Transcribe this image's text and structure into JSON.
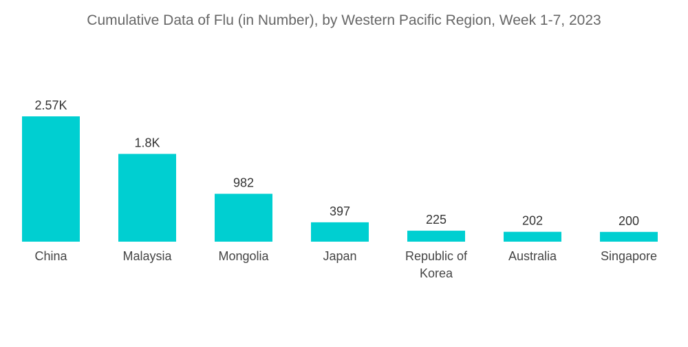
{
  "chart_data": {
    "type": "bar",
    "title": "Cumulative Data of Flu (in Number), by Western Pacific Region, Week 1-7, 2023",
    "categories": [
      "China",
      "Malaysia",
      "Mongolia",
      "Japan",
      "Republic of Korea",
      "Australia",
      "Singapore"
    ],
    "category_lines": [
      [
        "China"
      ],
      [
        "Malaysia"
      ],
      [
        "Mongolia"
      ],
      [
        "Japan"
      ],
      [
        "Republic of",
        "Korea"
      ],
      [
        "Australia"
      ],
      [
        "Singapore"
      ]
    ],
    "values": [
      2570,
      1800,
      982,
      397,
      225,
      202,
      200
    ],
    "value_labels": [
      "2.57K",
      "1.8K",
      "982",
      "397",
      "225",
      "202",
      "200"
    ],
    "xlabel": "",
    "ylabel": "",
    "ylim": [
      0,
      2570
    ],
    "grid": false,
    "bar_color": "#00cfd1"
  }
}
